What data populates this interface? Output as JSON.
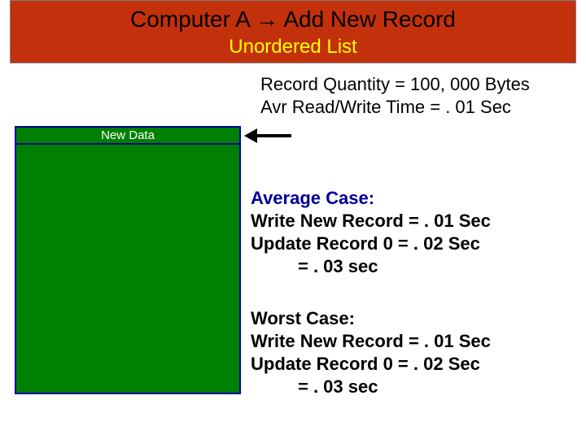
{
  "header": {
    "bar_bg": "#c2310b",
    "title_text": "Computer A → Add New Record",
    "title_color": "#000000",
    "subtitle_text": "Unordered List",
    "subtitle_color": "#ffff00"
  },
  "info": {
    "line1": "Record  Quantity =  100, 000 Bytes",
    "line2": "Avr Read/Write Time = . 01 Sec"
  },
  "diagram": {
    "block_bg": "#008000",
    "block_border": "#000099",
    "new_data_label": "New Data",
    "new_data_color": "#ffffff",
    "arrow_color": "#000000"
  },
  "average_case": {
    "heading": "Average Case:",
    "heading_color": "#000099",
    "line1": "Write New Record  = . 01 Sec",
    "line2": "Update Record 0 = . 02 Sec",
    "line3": "= . 03 sec",
    "body_color": "#000000"
  },
  "worst_case": {
    "heading": "Worst Case:",
    "line1": "Write New Record  = . 01 Sec",
    "line2": "Update Record 0 = . 02 Sec",
    "line3": "= . 03 sec",
    "body_color": "#000000"
  }
}
